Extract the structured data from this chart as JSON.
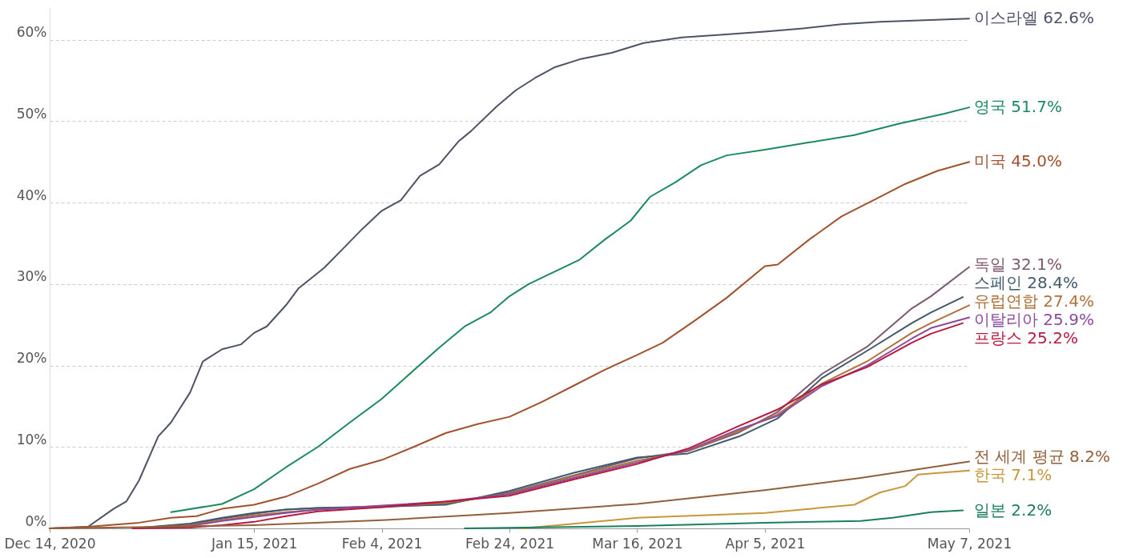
{
  "chart_data": {
    "type": "line",
    "xlim": [
      "2020-12-14",
      "2021-05-07"
    ],
    "ylim": [
      0,
      64
    ],
    "xticks": [
      {
        "value": "2020-12-14",
        "label": "Dec 14, 2020"
      },
      {
        "value": "2021-01-15",
        "label": "Jan 15, 2021"
      },
      {
        "value": "2021-02-04",
        "label": "Feb 4, 2021"
      },
      {
        "value": "2021-02-24",
        "label": "Feb 24, 2021"
      },
      {
        "value": "2021-03-16",
        "label": "Mar 16, 2021"
      },
      {
        "value": "2021-04-05",
        "label": "Apr 5, 2021"
      },
      {
        "value": "2021-05-07",
        "label": "May 7, 2021"
      }
    ],
    "yticks": [
      {
        "value": 0,
        "label": "0%"
      },
      {
        "value": 10,
        "label": "10%"
      },
      {
        "value": 20,
        "label": "20%"
      },
      {
        "value": 30,
        "label": "30%"
      },
      {
        "value": 40,
        "label": "40%"
      },
      {
        "value": 50,
        "label": "50%"
      },
      {
        "value": 60,
        "label": "60%"
      }
    ],
    "grid": "y",
    "line_style": "solid",
    "series": [
      {
        "name": "이스라엘",
        "color": "#4c5364",
        "x": [
          "2020-12-14",
          "2020-12-20",
          "2020-12-24",
          "2020-12-26",
          "2020-12-28",
          "2020-12-31",
          "2021-01-02",
          "2021-01-05",
          "2021-01-07",
          "2021-01-10",
          "2021-01-13",
          "2021-01-15",
          "2021-01-17",
          "2021-01-20",
          "2021-01-22",
          "2021-01-26",
          "2021-01-29",
          "2021-02-01",
          "2021-02-04",
          "2021-02-07",
          "2021-02-10",
          "2021-02-13",
          "2021-02-16",
          "2021-02-18",
          "2021-02-22",
          "2021-02-25",
          "2021-02-28",
          "2021-03-03",
          "2021-03-07",
          "2021-03-12",
          "2021-03-17",
          "2021-03-23",
          "2021-03-29",
          "2021-04-05",
          "2021-04-11",
          "2021-04-17",
          "2021-04-23",
          "2021-04-30",
          "2021-05-07"
        ],
        "values": [
          0,
          0.2,
          2.4,
          3.3,
          5.9,
          11.3,
          13,
          16.7,
          20.5,
          22,
          22.6,
          24,
          24.8,
          27.4,
          29.5,
          32,
          34.4,
          36.8,
          39,
          40.3,
          43.3,
          44.7,
          47.5,
          48.8,
          51.8,
          53.8,
          55.3,
          56.6,
          57.6,
          58.4,
          59.6,
          60.3,
          60.6,
          61.0,
          61.4,
          61.9,
          62.2,
          62.4,
          62.6
        ],
        "value_labels": [
          null,
          null,
          null,
          null,
          null,
          null,
          null,
          null,
          null,
          null,
          null,
          null,
          null,
          null,
          null,
          null,
          null,
          null,
          null,
          null,
          null,
          null,
          null,
          null,
          null,
          null,
          null,
          null,
          null,
          null,
          null,
          null,
          null,
          null,
          null,
          null,
          null,
          null,
          "62.6%"
        ]
      },
      {
        "name": "영국",
        "color": "#1d8a5e",
        "x": [
          "2021-01-02",
          "2021-01-10",
          "2021-01-15",
          "2021-01-20",
          "2021-01-25",
          "2021-01-30",
          "2021-02-04",
          "2021-02-08",
          "2021-02-13",
          "2021-02-17",
          "2021-02-21",
          "2021-02-24",
          "2021-02-27",
          "2021-03-03",
          "2021-03-07",
          "2021-03-11",
          "2021-03-15",
          "2021-03-18",
          "2021-03-22",
          "2021-03-26",
          "2021-03-30",
          "2021-04-05",
          "2021-04-12",
          "2021-04-19",
          "2021-04-26",
          "2021-05-03",
          "2021-05-07"
        ],
        "values": [
          2.0,
          3.0,
          4.8,
          7.5,
          10,
          13,
          15.9,
          18.7,
          22.2,
          24.8,
          26.5,
          28.5,
          30.0,
          31.5,
          33.0,
          35.5,
          37.8,
          40.7,
          42.5,
          44.6,
          45.8,
          46.5,
          47.4,
          48.3,
          49.7,
          50.9,
          51.7
        ],
        "value_labels": [
          null,
          null,
          null,
          null,
          null,
          null,
          null,
          null,
          null,
          null,
          null,
          null,
          null,
          null,
          null,
          null,
          null,
          null,
          null,
          null,
          null,
          null,
          null,
          null,
          null,
          null,
          "51.7%"
        ]
      },
      {
        "name": "미국",
        "color": "#a0522d",
        "x": [
          "2020-12-14",
          "2020-12-20",
          "2020-12-28",
          "2021-01-02",
          "2021-01-06",
          "2021-01-10",
          "2021-01-15",
          "2021-01-20",
          "2021-01-25",
          "2021-01-30",
          "2021-02-04",
          "2021-02-09",
          "2021-02-14",
          "2021-02-19",
          "2021-02-24",
          "2021-03-01",
          "2021-03-06",
          "2021-03-11",
          "2021-03-16",
          "2021-03-20",
          "2021-03-25",
          "2021-03-30",
          "2021-04-05",
          "2021-04-07",
          "2021-04-12",
          "2021-04-17",
          "2021-04-22",
          "2021-04-27",
          "2021-05-02",
          "2021-05-07"
        ],
        "values": [
          0,
          0.2,
          0.7,
          1.3,
          1.5,
          2.4,
          2.9,
          3.9,
          5.5,
          7.3,
          8.4,
          10.0,
          11.7,
          12.8,
          13.7,
          15.5,
          17.5,
          19.5,
          21.3,
          22.8,
          25.5,
          28.3,
          32.2,
          32.4,
          35.5,
          38.3,
          40.3,
          42.3,
          43.9,
          45.0
        ],
        "value_labels": [
          null,
          null,
          null,
          null,
          null,
          null,
          null,
          null,
          null,
          null,
          null,
          null,
          null,
          null,
          null,
          null,
          null,
          null,
          null,
          null,
          null,
          null,
          null,
          null,
          null,
          null,
          null,
          null,
          null,
          "45.0%"
        ]
      },
      {
        "name": "독일",
        "color": "#7d5870",
        "x": [
          "2020-12-27",
          "2021-01-05",
          "2021-01-10",
          "2021-01-15",
          "2021-01-20",
          "2021-01-25",
          "2021-02-04",
          "2021-02-14",
          "2021-02-24",
          "2021-03-06",
          "2021-03-16",
          "2021-03-24",
          "2021-04-01",
          "2021-04-07",
          "2021-04-14",
          "2021-04-21",
          "2021-04-28",
          "2021-05-01",
          "2021-05-07"
        ],
        "values": [
          0,
          0.5,
          1.2,
          1.8,
          2.3,
          2.5,
          2.6,
          3.0,
          4.4,
          6.5,
          8.6,
          9.5,
          11.8,
          14.3,
          19.0,
          22.3,
          27.0,
          28.5,
          32.1
        ],
        "value_labels": [
          null,
          null,
          null,
          null,
          null,
          null,
          null,
          null,
          null,
          null,
          null,
          null,
          null,
          null,
          null,
          null,
          null,
          null,
          "32.1%"
        ]
      },
      {
        "name": "스페인",
        "color": "#3f5a6a",
        "x": [
          "2020-12-27",
          "2021-01-05",
          "2021-01-10",
          "2021-01-15",
          "2021-01-20",
          "2021-01-25",
          "2021-02-04",
          "2021-02-14",
          "2021-02-24",
          "2021-03-06",
          "2021-03-16",
          "2021-03-24",
          "2021-04-01",
          "2021-04-07",
          "2021-04-14",
          "2021-04-21",
          "2021-04-28",
          "2021-05-01",
          "2021-05-06"
        ],
        "values": [
          0,
          0.6,
          1.3,
          1.9,
          2.3,
          2.5,
          2.7,
          2.9,
          4.6,
          6.8,
          8.7,
          9.2,
          11.3,
          13.5,
          18.5,
          21.8,
          25.2,
          26.5,
          28.4
        ],
        "value_labels": [
          null,
          null,
          null,
          null,
          null,
          null,
          null,
          null,
          null,
          null,
          null,
          null,
          null,
          null,
          null,
          null,
          null,
          null,
          "28.4%"
        ]
      },
      {
        "name": "유럽연합",
        "color": "#b0703a",
        "x": [
          "2020-12-27",
          "2021-01-05",
          "2021-01-10",
          "2021-01-15",
          "2021-01-20",
          "2021-01-25",
          "2021-02-04",
          "2021-02-14",
          "2021-02-24",
          "2021-03-06",
          "2021-03-16",
          "2021-03-24",
          "2021-04-01",
          "2021-04-07",
          "2021-04-14",
          "2021-04-21",
          "2021-04-28",
          "2021-05-01",
          "2021-05-07"
        ],
        "values": [
          0,
          0.4,
          1.0,
          1.6,
          2.0,
          2.3,
          2.7,
          3.1,
          4.3,
          6.4,
          8.3,
          9.5,
          12.0,
          14.0,
          17.8,
          20.5,
          24.0,
          25.2,
          27.4
        ],
        "value_labels": [
          null,
          null,
          null,
          null,
          null,
          null,
          null,
          null,
          null,
          null,
          null,
          null,
          null,
          null,
          null,
          null,
          null,
          null,
          "27.4%"
        ]
      },
      {
        "name": "이탈리아",
        "color": "#8a4b9c",
        "x": [
          "2020-12-27",
          "2021-01-05",
          "2021-01-10",
          "2021-01-15",
          "2021-01-20",
          "2021-01-25",
          "2021-02-04",
          "2021-02-14",
          "2021-02-24",
          "2021-03-06",
          "2021-03-16",
          "2021-03-24",
          "2021-04-01",
          "2021-04-07",
          "2021-04-14",
          "2021-04-21",
          "2021-04-28",
          "2021-05-01",
          "2021-05-07"
        ],
        "values": [
          0,
          0.3,
          0.9,
          1.4,
          1.9,
          2.3,
          2.8,
          3.3,
          4.2,
          6.2,
          8.1,
          9.6,
          12.2,
          13.8,
          17.5,
          20.0,
          23.3,
          24.6,
          25.9
        ],
        "value_labels": [
          null,
          null,
          null,
          null,
          null,
          null,
          null,
          null,
          null,
          null,
          null,
          null,
          null,
          null,
          null,
          null,
          null,
          null,
          "25.9%"
        ]
      },
      {
        "name": "프랑스",
        "color": "#b8183e",
        "x": [
          "2020-12-27",
          "2021-01-05",
          "2021-01-10",
          "2021-01-15",
          "2021-01-20",
          "2021-01-25",
          "2021-02-04",
          "2021-02-14",
          "2021-02-24",
          "2021-03-06",
          "2021-03-16",
          "2021-03-24",
          "2021-04-01",
          "2021-04-07",
          "2021-04-14",
          "2021-04-21",
          "2021-04-28",
          "2021-05-01",
          "2021-05-06"
        ],
        "values": [
          0,
          0.1,
          0.4,
          0.8,
          1.5,
          2.1,
          2.6,
          3.3,
          4.0,
          6.0,
          7.9,
          9.8,
          12.6,
          14.6,
          17.7,
          19.8,
          22.8,
          23.9,
          25.2
        ],
        "value_labels": [
          null,
          null,
          null,
          null,
          null,
          null,
          null,
          null,
          null,
          null,
          null,
          null,
          null,
          null,
          null,
          null,
          null,
          null,
          "25.2%"
        ]
      },
      {
        "name": "전 세계 평균",
        "color": "#91603a",
        "x": [
          "2020-12-14",
          "2021-01-01",
          "2021-01-15",
          "2021-02-04",
          "2021-02-24",
          "2021-03-16",
          "2021-04-05",
          "2021-04-20",
          "2021-05-07"
        ],
        "values": [
          0,
          0.2,
          0.4,
          1.0,
          1.9,
          3.0,
          4.7,
          6.2,
          8.2
        ],
        "value_labels": [
          null,
          null,
          null,
          null,
          null,
          null,
          null,
          null,
          "8.2%"
        ]
      },
      {
        "name": "한국",
        "color": "#c9963a",
        "x": [
          "2021-02-26",
          "2021-03-05",
          "2021-03-16",
          "2021-04-05",
          "2021-04-19",
          "2021-04-23",
          "2021-04-27",
          "2021-04-29",
          "2021-05-07"
        ],
        "values": [
          0,
          0.5,
          1.3,
          1.9,
          2.9,
          4.4,
          5.2,
          6.6,
          7.1
        ],
        "value_labels": [
          null,
          null,
          null,
          null,
          null,
          null,
          null,
          null,
          "7.1%"
        ]
      },
      {
        "name": "일본",
        "color": "#1b7f5c",
        "x": [
          "2021-02-17",
          "2021-03-16",
          "2021-04-05",
          "2021-04-20",
          "2021-04-25",
          "2021-05-01",
          "2021-05-06"
        ],
        "values": [
          0,
          0.3,
          0.7,
          0.9,
          1.3,
          2.0,
          2.2
        ],
        "value_labels": [
          null,
          null,
          null,
          null,
          null,
          null,
          "2.2%"
        ]
      }
    ]
  }
}
